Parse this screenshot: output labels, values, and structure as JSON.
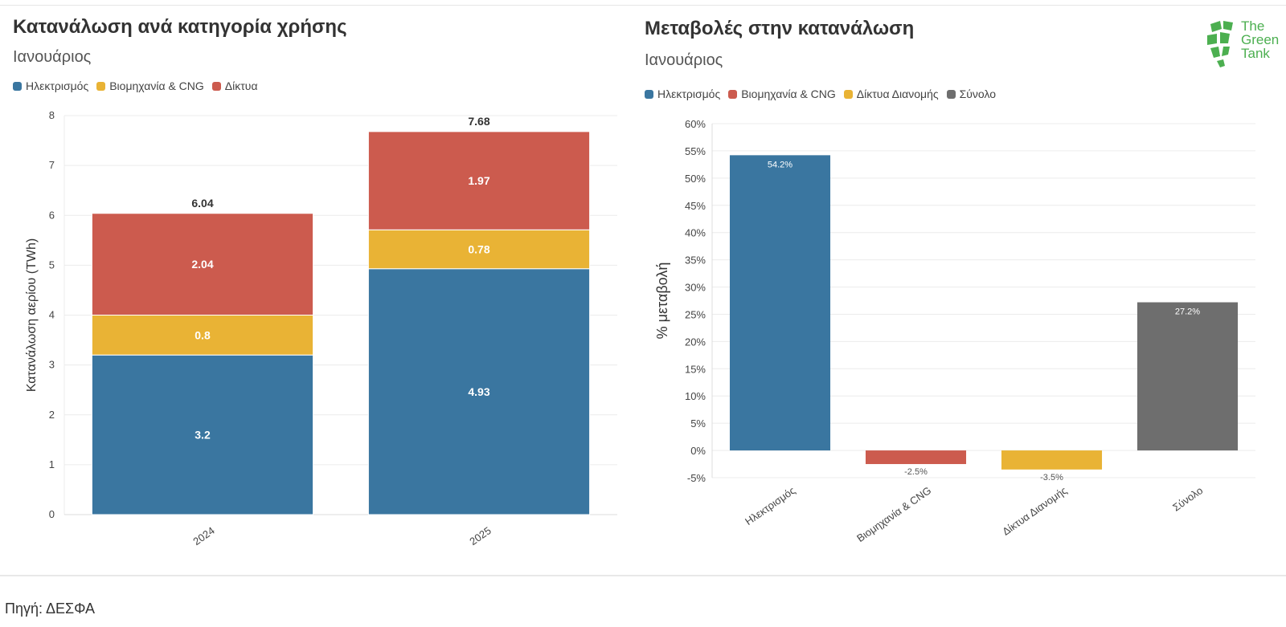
{
  "left_panel": {
    "title": "Κατανάλωση ανά κατηγορία χρήσης",
    "subtitle": "Ιανουάριος",
    "legend": [
      {
        "label": "Ηλεκτρισμός",
        "color": "#3a76a0"
      },
      {
        "label": "Βιομηχανία & CNG",
        "color": "#e9b335"
      },
      {
        "label": "Δίκτυα",
        "color": "#cc5b4e"
      }
    ]
  },
  "right_panel": {
    "title": "Μεταβολές στην κατανάλωση",
    "subtitle": "Ιανουάριος",
    "legend": [
      {
        "label": "Ηλεκτρισμός",
        "color": "#3a76a0"
      },
      {
        "label": "Βιομηχανία & CNG",
        "color": "#cc5b4e"
      },
      {
        "label": "Δίκτυα Διανομής",
        "color": "#e9b335"
      },
      {
        "label": "Σύνολο",
        "color": "#6e6e6e"
      }
    ]
  },
  "source": "Πηγή: ΔΕΣΦΑ",
  "logo": {
    "line1": "The",
    "line2": "Green",
    "line3": "Tank",
    "color": "#4caf50"
  },
  "chart_data": [
    {
      "type": "bar",
      "stacked": true,
      "title": "Κατανάλωση ανά κατηγορία χρήσης",
      "subtitle": "Ιανουάριος",
      "categories": [
        "2024",
        "2025"
      ],
      "series": [
        {
          "name": "Ηλεκτρισμός",
          "values": [
            3.2,
            4.93
          ],
          "labels": [
            "3.2",
            "4.93"
          ],
          "color": "#3a76a0"
        },
        {
          "name": "Βιομηχανία & CNG",
          "values": [
            0.8,
            0.78
          ],
          "labels": [
            "0.8",
            "0.78"
          ],
          "color": "#e9b335"
        },
        {
          "name": "Δίκτυα",
          "values": [
            2.04,
            1.97
          ],
          "labels": [
            "2.04",
            "1.97"
          ],
          "color": "#cc5b4e"
        }
      ],
      "totals": [
        6.04,
        7.68
      ],
      "total_labels": [
        "6.04",
        "7.68"
      ],
      "ylabel": "Κατανάλωση αερίου (TWh)",
      "xlabel": "",
      "ylim": [
        0,
        8
      ],
      "yticks": [
        0,
        1,
        2,
        3,
        4,
        5,
        6,
        7,
        8
      ],
      "ytick_labels": [
        "0",
        "1",
        "2",
        "3",
        "4",
        "5",
        "6",
        "7",
        "8"
      ],
      "grid": true,
      "legend_position": "top-left"
    },
    {
      "type": "bar",
      "title": "Μεταβολές στην κατανάλωση",
      "subtitle": "Ιανουάριος",
      "categories": [
        "Ηλεκτρισμός",
        "Βιομηχανία & CNG",
        "Δίκτυα Διανομής",
        "Σύνολο"
      ],
      "values": [
        54.2,
        -2.5,
        -3.5,
        27.2
      ],
      "value_labels": [
        "54.2%",
        "-2.5%",
        "-3.5%",
        "27.2%"
      ],
      "colors": [
        "#3a76a0",
        "#cc5b4e",
        "#e9b335",
        "#6e6e6e"
      ],
      "ylabel": "% μεταβολή",
      "xlabel": "",
      "ylim": [
        -5,
        60
      ],
      "yticks": [
        -5,
        0,
        5,
        10,
        15,
        20,
        25,
        30,
        35,
        40,
        45,
        50,
        55,
        60
      ],
      "ytick_labels": [
        "-5%",
        "0%",
        "5%",
        "10%",
        "15%",
        "20%",
        "25%",
        "30%",
        "35%",
        "40%",
        "45%",
        "50%",
        "55%",
        "60%"
      ],
      "grid": true,
      "legend_position": "top-left"
    }
  ]
}
